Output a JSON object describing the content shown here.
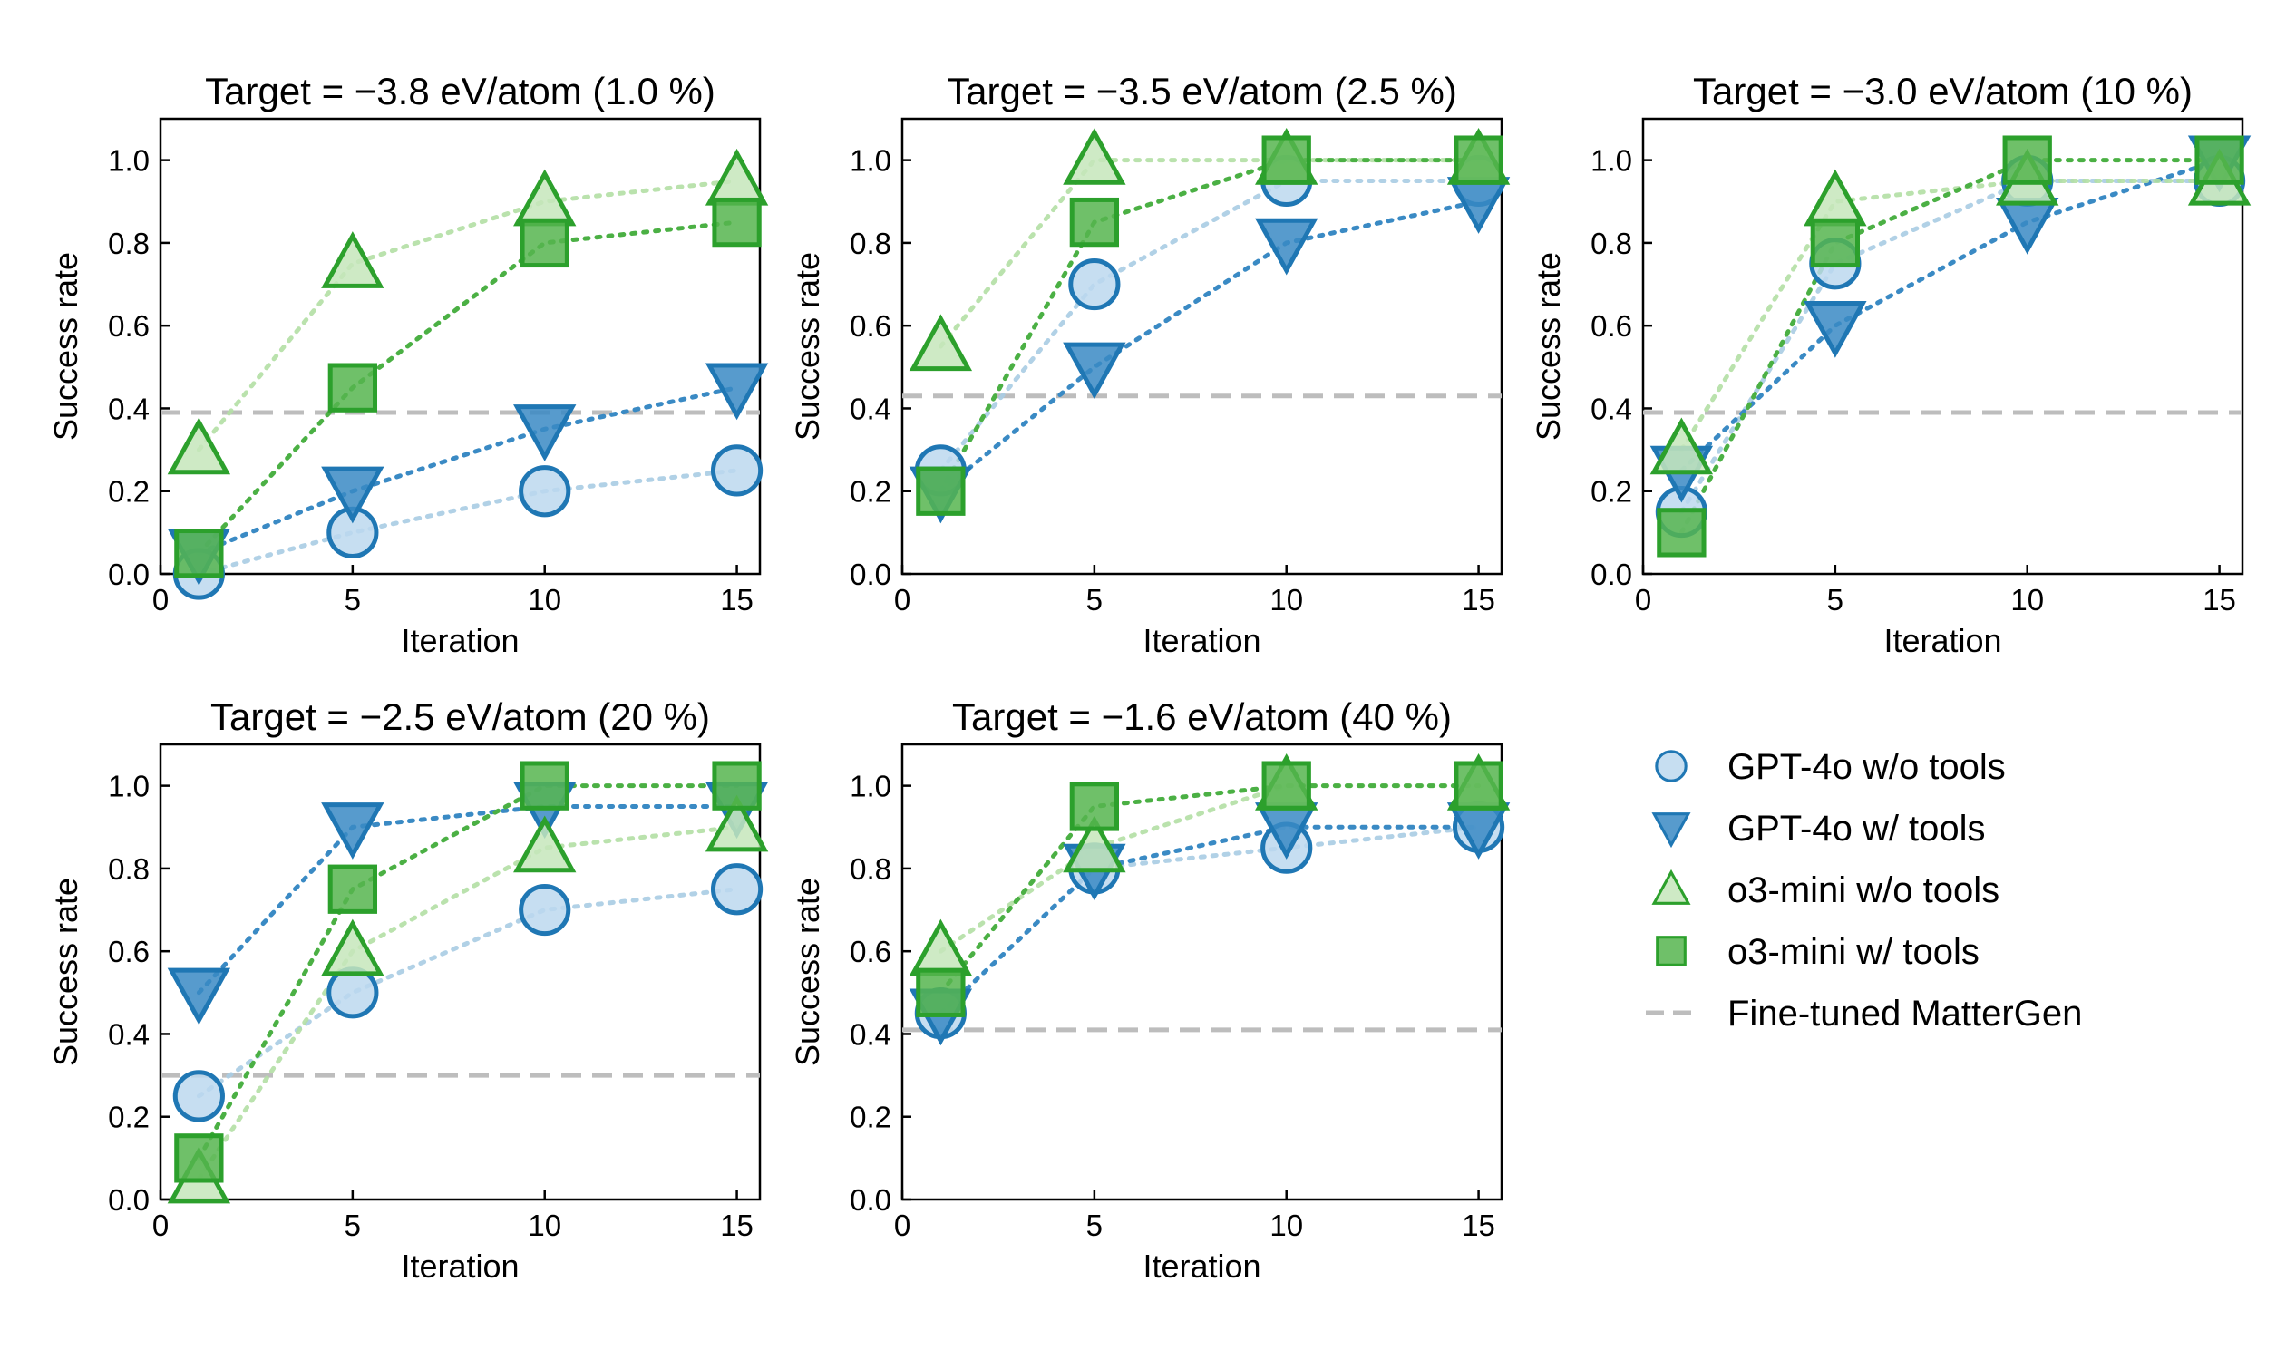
{
  "chart_data": {
    "type": "line",
    "xlabel": "Iteration",
    "ylabel": "Success rate",
    "x": [
      1,
      5,
      10,
      15
    ],
    "xlim": [
      0,
      15.6
    ],
    "ylim": [
      0,
      1.1
    ],
    "xticks": [
      0,
      5,
      10,
      15
    ],
    "yticks": [
      0.0,
      0.2,
      0.4,
      0.6,
      0.8,
      1.0
    ],
    "series_styles": [
      {
        "key": "gpt4o_no_tools",
        "color": "#1f77b4",
        "fill": "#bcd8ee",
        "marker": "circle",
        "line_color": "#a9cce3",
        "line_alpha": 0.9
      },
      {
        "key": "gpt4o_tools",
        "color": "#1f77b4",
        "fill": "#3a8ac4",
        "marker": "triangle-down",
        "line_color": "#3a8ac4",
        "line_alpha": 1.0
      },
      {
        "key": "o3_no_tools",
        "color": "#2ca02c",
        "fill": "#c5e6bb",
        "marker": "triangle-up",
        "line_color": "#b3dfa4",
        "line_alpha": 0.9
      },
      {
        "key": "o3_tools",
        "color": "#2ca02c",
        "fill": "#56b54f",
        "marker": "square",
        "line_color": "#4bb044",
        "line_alpha": 1.0
      }
    ],
    "baseline_color": "#bdbdbd",
    "panels": [
      {
        "title": "Target = −3.8 eV/atom (1.0 %)",
        "baseline": 0.39,
        "series": [
          {
            "name": "GPT-4o w/o tools",
            "values": [
              0.0,
              0.1,
              0.2,
              0.25
            ]
          },
          {
            "name": "GPT-4o w/ tools",
            "values": [
              0.05,
              0.2,
              0.35,
              0.45
            ]
          },
          {
            "name": "o3-mini w/o tools",
            "values": [
              0.3,
              0.75,
              0.9,
              0.95
            ]
          },
          {
            "name": "o3-mini w/ tools",
            "values": [
              0.05,
              0.45,
              0.8,
              0.85
            ]
          }
        ]
      },
      {
        "title": "Target = −3.5 eV/atom (2.5 %)",
        "baseline": 0.43,
        "series": [
          {
            "name": "GPT-4o w/o tools",
            "values": [
              0.25,
              0.7,
              0.95,
              0.95
            ]
          },
          {
            "name": "GPT-4o w/ tools",
            "values": [
              0.2,
              0.5,
              0.8,
              0.9
            ]
          },
          {
            "name": "o3-mini w/o tools",
            "values": [
              0.55,
              1.0,
              1.0,
              1.0
            ]
          },
          {
            "name": "o3-mini w/ tools",
            "values": [
              0.2,
              0.85,
              1.0,
              1.0
            ]
          }
        ]
      },
      {
        "title": "Target = −3.0 eV/atom (10 %)",
        "baseline": 0.39,
        "series": [
          {
            "name": "GPT-4o w/o tools",
            "values": [
              0.15,
              0.75,
              0.95,
              0.95
            ]
          },
          {
            "name": "GPT-4o w/ tools",
            "values": [
              0.25,
              0.6,
              0.85,
              1.0
            ]
          },
          {
            "name": "o3-mini w/o tools",
            "values": [
              0.3,
              0.9,
              0.95,
              0.95
            ]
          },
          {
            "name": "o3-mini w/ tools",
            "values": [
              0.1,
              0.8,
              1.0,
              1.0
            ]
          }
        ]
      },
      {
        "title": "Target = −2.5 eV/atom (20 %)",
        "baseline": 0.3,
        "series": [
          {
            "name": "GPT-4o w/o tools",
            "values": [
              0.25,
              0.5,
              0.7,
              0.75
            ]
          },
          {
            "name": "GPT-4o w/ tools",
            "values": [
              0.5,
              0.9,
              0.95,
              0.95
            ]
          },
          {
            "name": "o3-mini w/o tools",
            "values": [
              0.05,
              0.6,
              0.85,
              0.9
            ]
          },
          {
            "name": "o3-mini w/ tools",
            "values": [
              0.1,
              0.75,
              1.0,
              1.0
            ]
          }
        ]
      },
      {
        "title": "Target = −1.6 eV/atom (40 %)",
        "baseline": 0.41,
        "series": [
          {
            "name": "GPT-4o w/o tools",
            "values": [
              0.45,
              0.8,
              0.85,
              0.9
            ]
          },
          {
            "name": "GPT-4o w/ tools",
            "values": [
              0.45,
              0.8,
              0.9,
              0.9
            ]
          },
          {
            "name": "o3-mini w/o tools",
            "values": [
              0.6,
              0.85,
              1.0,
              1.0
            ]
          },
          {
            "name": "o3-mini w/ tools",
            "values": [
              0.5,
              0.95,
              1.0,
              1.0
            ]
          }
        ]
      }
    ],
    "legend": {
      "placement": "lower-right",
      "entries": [
        "GPT-4o w/o tools",
        "GPT-4o w/ tools",
        "o3-mini w/o tools",
        "o3-mini w/ tools",
        "Fine-tuned MatterGen"
      ]
    }
  }
}
